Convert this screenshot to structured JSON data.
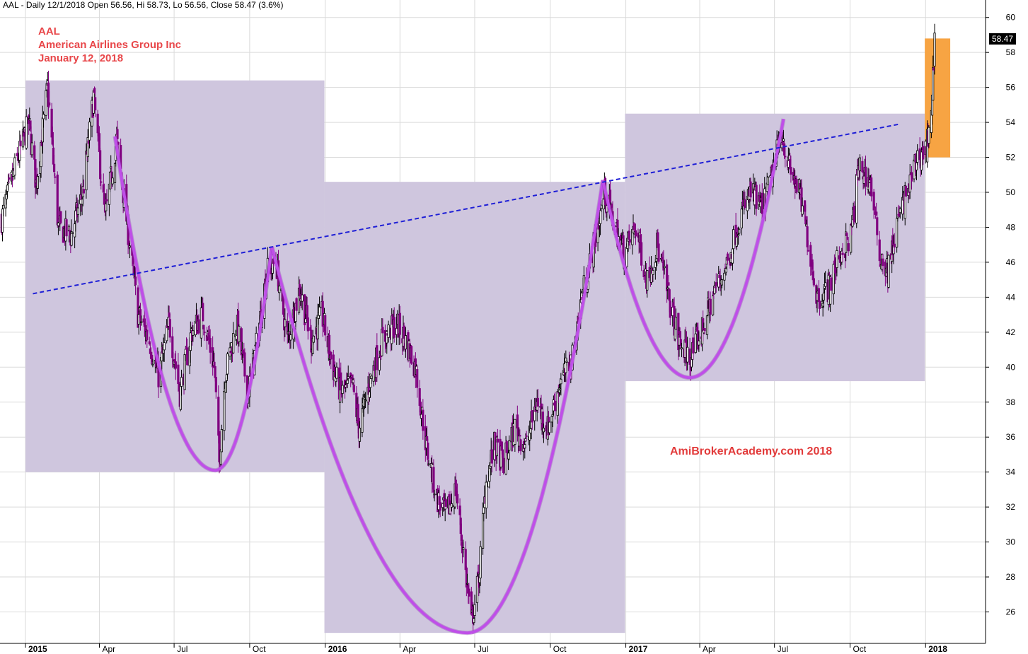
{
  "header": {
    "info": "AAL - Daily 12/1/2018 Open 56.56, Hi 58.73, Lo 56.56, Close 58.47 (3.6%)"
  },
  "annotation": {
    "ticker": "AAL",
    "company": "American Airlines Group Inc",
    "date": "January 12, 2018"
  },
  "watermark": "AmiBrokerAcademy.com  2018",
  "last_price_label": "58.47",
  "colors": {
    "zone": "#cfc6de",
    "zone_highlight": "#f7a443",
    "cup_curve": "#bf4fe8",
    "trendline": "#1f1fd6",
    "candle_up": "#000000",
    "candle_down": "#800080",
    "annotation_text": "#e8474a",
    "watermark_text": "#e23b3b"
  },
  "chart_data": {
    "type": "candlestick",
    "title": "AAL - Daily",
    "y_axis": {
      "position": "right",
      "range": [
        24.2,
        61.0
      ],
      "ticks": [
        26,
        28,
        30,
        32,
        34,
        36,
        38,
        40,
        42,
        44,
        46,
        48,
        50,
        52,
        54,
        56,
        58,
        60
      ]
    },
    "x_axis": {
      "range": [
        "2014-12-01",
        "2018-03-15"
      ],
      "ticks": [
        {
          "date": "2015-01-01",
          "label": "2015",
          "major": true
        },
        {
          "date": "2015-04-01",
          "label": "Apr",
          "major": false
        },
        {
          "date": "2015-07-01",
          "label": "Jul",
          "major": false
        },
        {
          "date": "2015-10-01",
          "label": "Oct",
          "major": false
        },
        {
          "date": "2016-01-01",
          "label": "2016",
          "major": true
        },
        {
          "date": "2016-04-01",
          "label": "Apr",
          "major": false
        },
        {
          "date": "2016-07-01",
          "label": "Jul",
          "major": false
        },
        {
          "date": "2016-10-01",
          "label": "Oct",
          "major": false
        },
        {
          "date": "2017-01-01",
          "label": "2017",
          "major": true
        },
        {
          "date": "2017-04-01",
          "label": "Apr",
          "major": false
        },
        {
          "date": "2017-07-01",
          "label": "Jul",
          "major": false
        },
        {
          "date": "2017-10-01",
          "label": "Oct",
          "major": false
        },
        {
          "date": "2018-01-01",
          "label": "2018",
          "major": true
        }
      ]
    },
    "grid": true,
    "price_path": [
      [
        "2014-12-03",
        48.5
      ],
      [
        "2014-12-20",
        51.5
      ],
      [
        "2015-01-05",
        54.0
      ],
      [
        "2015-01-14",
        50.5
      ],
      [
        "2015-01-28",
        56.0
      ],
      [
        "2015-02-10",
        48.0
      ],
      [
        "2015-02-25",
        47.5
      ],
      [
        "2015-03-12",
        50.0
      ],
      [
        "2015-03-25",
        55.5
      ],
      [
        "2015-04-08",
        48.5
      ],
      [
        "2015-04-22",
        53.0
      ],
      [
        "2015-05-08",
        47.0
      ],
      [
        "2015-05-18",
        43.0
      ],
      [
        "2015-06-01",
        41.5
      ],
      [
        "2015-06-12",
        39.5
      ],
      [
        "2015-06-25",
        42.5
      ],
      [
        "2015-07-08",
        38.5
      ],
      [
        "2015-07-22",
        42.0
      ],
      [
        "2015-08-05",
        43.0
      ],
      [
        "2015-08-19",
        40.0
      ],
      [
        "2015-08-25",
        34.5
      ],
      [
        "2015-09-01",
        39.5
      ],
      [
        "2015-09-15",
        42.5
      ],
      [
        "2015-09-29",
        38.5
      ],
      [
        "2015-10-10",
        41.5
      ],
      [
        "2015-10-22",
        45.5
      ],
      [
        "2015-11-02",
        46.0
      ],
      [
        "2015-11-16",
        41.5
      ],
      [
        "2015-12-01",
        44.5
      ],
      [
        "2015-12-15",
        41.5
      ],
      [
        "2015-12-28",
        43.0
      ],
      [
        "2016-01-10",
        40.0
      ],
      [
        "2016-01-20",
        38.5
      ],
      [
        "2016-02-03",
        39.0
      ],
      [
        "2016-02-11",
        36.5
      ],
      [
        "2016-02-26",
        39.5
      ],
      [
        "2016-03-10",
        41.5
      ],
      [
        "2016-03-28",
        42.5
      ],
      [
        "2016-04-08",
        41.5
      ],
      [
        "2016-04-20",
        40.0
      ],
      [
        "2016-05-03",
        35.5
      ],
      [
        "2016-05-16",
        32.5
      ],
      [
        "2016-05-27",
        31.5
      ],
      [
        "2016-06-08",
        33.0
      ],
      [
        "2016-06-17",
        29.5
      ],
      [
        "2016-06-27",
        25.3
      ],
      [
        "2016-07-06",
        28.0
      ],
      [
        "2016-07-15",
        33.5
      ],
      [
        "2016-07-25",
        35.5
      ],
      [
        "2016-08-05",
        34.5
      ],
      [
        "2016-08-19",
        36.5
      ],
      [
        "2016-09-02",
        35.5
      ],
      [
        "2016-09-14",
        38.0
      ],
      [
        "2016-09-28",
        36.5
      ],
      [
        "2016-10-12",
        39.0
      ],
      [
        "2016-10-28",
        40.5
      ],
      [
        "2016-11-08",
        44.0
      ],
      [
        "2016-11-21",
        46.5
      ],
      [
        "2016-12-06",
        50.0
      ],
      [
        "2016-12-16",
        48.5
      ],
      [
        "2016-12-30",
        46.5
      ],
      [
        "2017-01-13",
        48.0
      ],
      [
        "2017-01-27",
        45.0
      ],
      [
        "2017-02-08",
        47.0
      ],
      [
        "2017-02-22",
        44.0
      ],
      [
        "2017-03-06",
        41.5
      ],
      [
        "2017-03-20",
        40.5
      ],
      [
        "2017-04-03",
        42.0
      ],
      [
        "2017-04-20",
        44.5
      ],
      [
        "2017-05-05",
        46.0
      ],
      [
        "2017-05-19",
        48.5
      ],
      [
        "2017-06-02",
        50.0
      ],
      [
        "2017-06-16",
        49.0
      ],
      [
        "2017-06-28",
        51.0
      ],
      [
        "2017-07-10",
        53.5
      ],
      [
        "2017-07-18",
        51.5
      ],
      [
        "2017-07-31",
        50.0
      ],
      [
        "2017-08-10",
        47.5
      ],
      [
        "2017-08-22",
        44.0
      ],
      [
        "2017-09-05",
        44.5
      ],
      [
        "2017-09-19",
        46.5
      ],
      [
        "2017-10-02",
        47.5
      ],
      [
        "2017-10-12",
        51.5
      ],
      [
        "2017-10-26",
        50.5
      ],
      [
        "2017-11-06",
        46.5
      ],
      [
        "2017-11-16",
        45.5
      ],
      [
        "2017-11-29",
        48.5
      ],
      [
        "2017-12-13",
        50.5
      ],
      [
        "2017-12-22",
        52.0
      ],
      [
        "2018-01-02",
        52.5
      ],
      [
        "2018-01-08",
        55.0
      ],
      [
        "2018-01-12",
        58.4
      ]
    ],
    "rectangles": [
      {
        "name": "zone-1",
        "x1": "2015-01-01",
        "x2": "2015-12-31",
        "y1": 34.0,
        "y2": 56.4,
        "highlight": false
      },
      {
        "name": "zone-2",
        "x1": "2015-12-31",
        "x2": "2016-12-31",
        "y1": 24.8,
        "y2": 50.6,
        "highlight": false
      },
      {
        "name": "zone-3",
        "x1": "2016-12-31",
        "x2": "2017-12-31",
        "y1": 39.2,
        "y2": 54.5,
        "highlight": false
      },
      {
        "name": "zone-highlight",
        "x1": "2017-12-31",
        "x2": "2018-01-31",
        "y1": 52.0,
        "y2": 58.8,
        "highlight": true
      }
    ],
    "cup_curves": [
      {
        "name": "cup-1",
        "points": [
          [
            "2015-04-20",
            53.2
          ],
          [
            "2015-08-20",
            34.1
          ],
          [
            "2015-10-28",
            46.9
          ]
        ]
      },
      {
        "name": "cup-2",
        "points": [
          [
            "2015-10-28",
            46.9
          ],
          [
            "2016-06-22",
            24.8
          ],
          [
            "2016-12-04",
            50.7
          ]
        ]
      },
      {
        "name": "cup-3",
        "points": [
          [
            "2016-12-04",
            50.7
          ],
          [
            "2017-03-20",
            39.4
          ],
          [
            "2017-07-12",
            54.2
          ]
        ]
      }
    ],
    "trendline": {
      "from": [
        "2015-01-10",
        44.2
      ],
      "to": [
        "2017-11-30",
        53.9
      ],
      "style": "dashed"
    }
  }
}
